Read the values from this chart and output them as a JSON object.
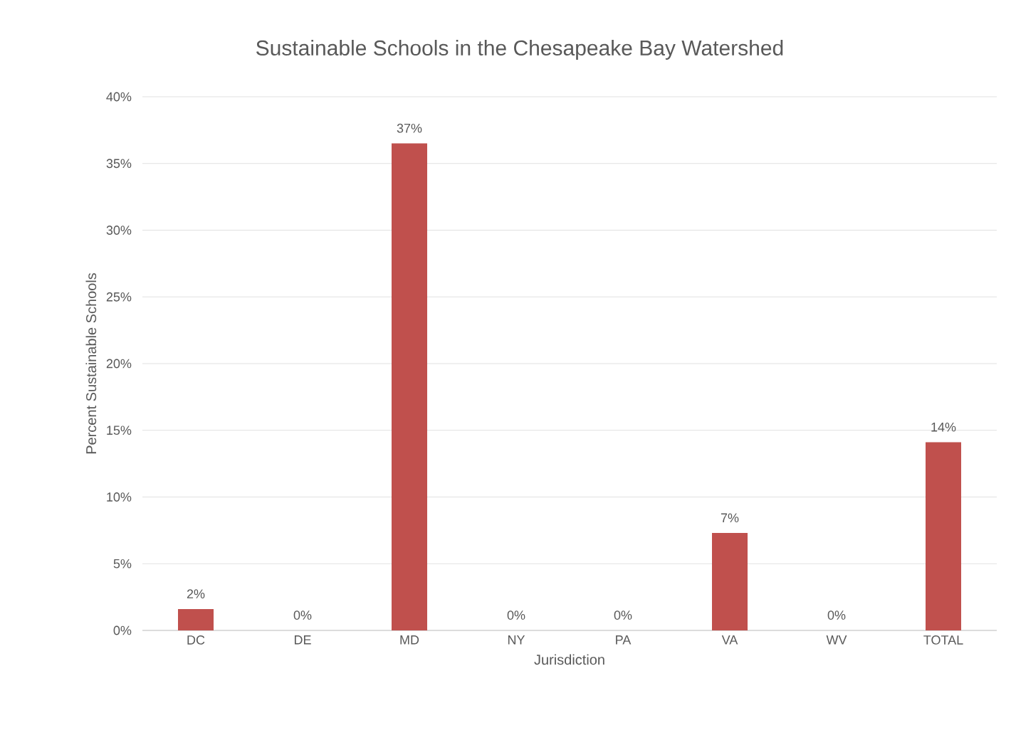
{
  "chart_data": {
    "type": "bar",
    "title": "Sustainable Schools in the Chesapeake Bay Watershed",
    "xlabel": "Jurisdiction",
    "ylabel": "Percent Sustainable Schools",
    "categories": [
      "DC",
      "DE",
      "MD",
      "NY",
      "PA",
      "VA",
      "WV",
      "TOTAL"
    ],
    "values": [
      1.6,
      0,
      36.5,
      0,
      0,
      7.3,
      0,
      14.1
    ],
    "value_labels": [
      "2%",
      "0%",
      "37%",
      "0%",
      "0%",
      "7%",
      "0%",
      "14%"
    ],
    "color": "#c0504d",
    "ylim": [
      0,
      40
    ],
    "yticks": [
      {
        "value": 0,
        "label": "0%"
      },
      {
        "value": 5,
        "label": "5%"
      },
      {
        "value": 10,
        "label": "10%"
      },
      {
        "value": 15,
        "label": "15%"
      },
      {
        "value": 20,
        "label": "20%"
      },
      {
        "value": 25,
        "label": "25%"
      },
      {
        "value": 30,
        "label": "30%"
      },
      {
        "value": 35,
        "label": "35%"
      },
      {
        "value": 40,
        "label": "40%"
      }
    ],
    "grid": "y"
  }
}
